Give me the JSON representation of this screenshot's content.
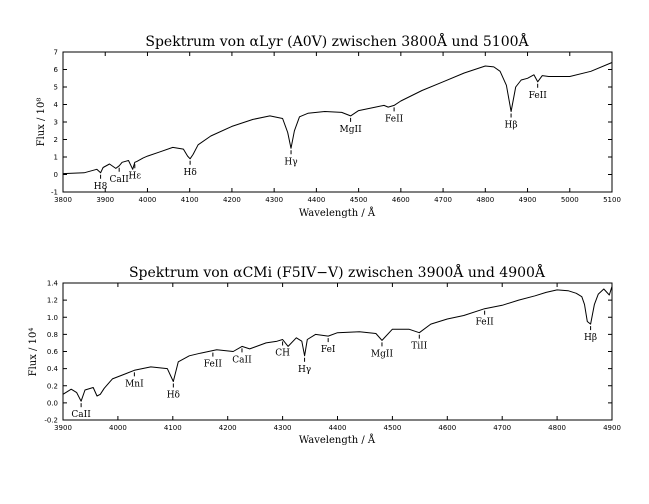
{
  "chart_data": [
    {
      "type": "line",
      "title": "Spektrum von αLyr (A0V) zwischen 3800Å und 5100Å",
      "xlabel": "Wavelength / Å",
      "ylabel": "Flux / 10⁸",
      "xlim": [
        3800,
        5100
      ],
      "ylim": [
        -1,
        7
      ],
      "xticks": [
        3800,
        3900,
        4000,
        4100,
        4200,
        4300,
        4400,
        4500,
        4600,
        4700,
        4800,
        4900,
        5000,
        5100
      ],
      "yticks": [
        -1,
        0,
        1,
        2,
        3,
        4,
        5,
        6,
        7
      ],
      "series": [
        {
          "x": [
            3800,
            3850,
            3880,
            3889,
            3895,
            3910,
            3925,
            3933,
            3940,
            3955,
            3965,
            3970,
            3975,
            3990,
            4000,
            4030,
            4060,
            4085,
            4095,
            4101,
            4108,
            4120,
            4150,
            4200,
            4250,
            4290,
            4320,
            4332,
            4340,
            4348,
            4360,
            4380,
            4420,
            4460,
            4481,
            4500,
            4540,
            4560,
            4570,
            4584,
            4600,
            4650,
            4700,
            4750,
            4800,
            4820,
            4835,
            4850,
            4861,
            4872,
            4885,
            4900,
            4915,
            4924,
            4935,
            4950,
            5000,
            5050,
            5100
          ],
          "values": [
            0.05,
            0.1,
            0.3,
            0.1,
            0.4,
            0.6,
            0.35,
            0.5,
            0.7,
            0.8,
            0.3,
            0.7,
            0.75,
            0.95,
            1.05,
            1.3,
            1.55,
            1.45,
            1.05,
            0.9,
            1.15,
            1.7,
            2.2,
            2.75,
            3.15,
            3.35,
            3.2,
            2.4,
            1.5,
            2.5,
            3.3,
            3.5,
            3.6,
            3.55,
            3.35,
            3.65,
            3.85,
            3.95,
            3.85,
            3.95,
            4.2,
            4.8,
            5.3,
            5.8,
            6.2,
            6.15,
            5.9,
            5.1,
            3.6,
            5.0,
            5.4,
            5.5,
            5.7,
            5.3,
            5.65,
            5.6,
            5.6,
            5.9,
            6.4
          ]
        }
      ],
      "annotations": [
        {
          "text": "H8",
          "x": 3889
        },
        {
          "text": "CaII",
          "x": 3933
        },
        {
          "text": "Hε",
          "x": 3970
        },
        {
          "text": "Hδ",
          "x": 4101
        },
        {
          "text": "Hγ",
          "x": 4340
        },
        {
          "text": "MgII",
          "x": 4481
        },
        {
          "text": "FeII",
          "x": 4584
        },
        {
          "text": "Hβ",
          "x": 4861
        },
        {
          "text": "FeII",
          "x": 4924
        }
      ]
    },
    {
      "type": "line",
      "title": "Spektrum von αCMi (F5IV−V) zwischen 3900Å und 4900Å",
      "xlabel": "Wavelength / Å",
      "ylabel": "Flux / 10⁴",
      "xlim": [
        3900,
        4900
      ],
      "ylim": [
        -0.2,
        1.4
      ],
      "xticks": [
        3900,
        4000,
        4100,
        4200,
        4300,
        4400,
        4500,
        4600,
        4700,
        4800,
        4900
      ],
      "yticks": [
        -0.2,
        0,
        0.2,
        0.4,
        0.6,
        0.8,
        1.0,
        1.2,
        1.4
      ],
      "series": [
        {
          "x": [
            3900,
            3915,
            3925,
            3933,
            3940,
            3955,
            3962,
            3968,
            3975,
            3990,
            4010,
            4030,
            4060,
            4090,
            4101,
            4110,
            4130,
            4150,
            4180,
            4210,
            4226,
            4240,
            4270,
            4290,
            4300,
            4310,
            4325,
            4335,
            4340,
            4345,
            4360,
            4383,
            4400,
            4440,
            4470,
            4481,
            4500,
            4530,
            4549,
            4570,
            4600,
            4630,
            4668,
            4700,
            4730,
            4760,
            4780,
            4800,
            4820,
            4835,
            4845,
            4850,
            4855,
            4861,
            4868,
            4875,
            4885,
            4895,
            4900
          ],
          "values": [
            0.1,
            0.16,
            0.12,
            0.02,
            0.15,
            0.18,
            0.08,
            0.1,
            0.17,
            0.28,
            0.33,
            0.38,
            0.42,
            0.4,
            0.25,
            0.48,
            0.55,
            0.58,
            0.62,
            0.6,
            0.66,
            0.63,
            0.7,
            0.72,
            0.74,
            0.66,
            0.76,
            0.72,
            0.55,
            0.74,
            0.8,
            0.78,
            0.82,
            0.83,
            0.81,
            0.73,
            0.86,
            0.86,
            0.82,
            0.92,
            0.98,
            1.02,
            1.1,
            1.14,
            1.2,
            1.25,
            1.29,
            1.32,
            1.31,
            1.28,
            1.24,
            1.15,
            0.95,
            0.92,
            1.15,
            1.27,
            1.33,
            1.26,
            1.36
          ]
        }
      ],
      "annotations": [
        {
          "text": "CaII",
          "x": 3933
        },
        {
          "text": "MnI",
          "x": 4030
        },
        {
          "text": "Hδ",
          "x": 4101
        },
        {
          "text": "FeII",
          "x": 4173
        },
        {
          "text": "CaII",
          "x": 4226
        },
        {
          "text": "CH",
          "x": 4300
        },
        {
          "text": "Hγ",
          "x": 4340
        },
        {
          "text": "FeI",
          "x": 4383
        },
        {
          "text": "MgII",
          "x": 4481
        },
        {
          "text": "TiII",
          "x": 4549
        },
        {
          "text": "FeII",
          "x": 4668
        },
        {
          "text": "Hβ",
          "x": 4861
        }
      ]
    }
  ]
}
